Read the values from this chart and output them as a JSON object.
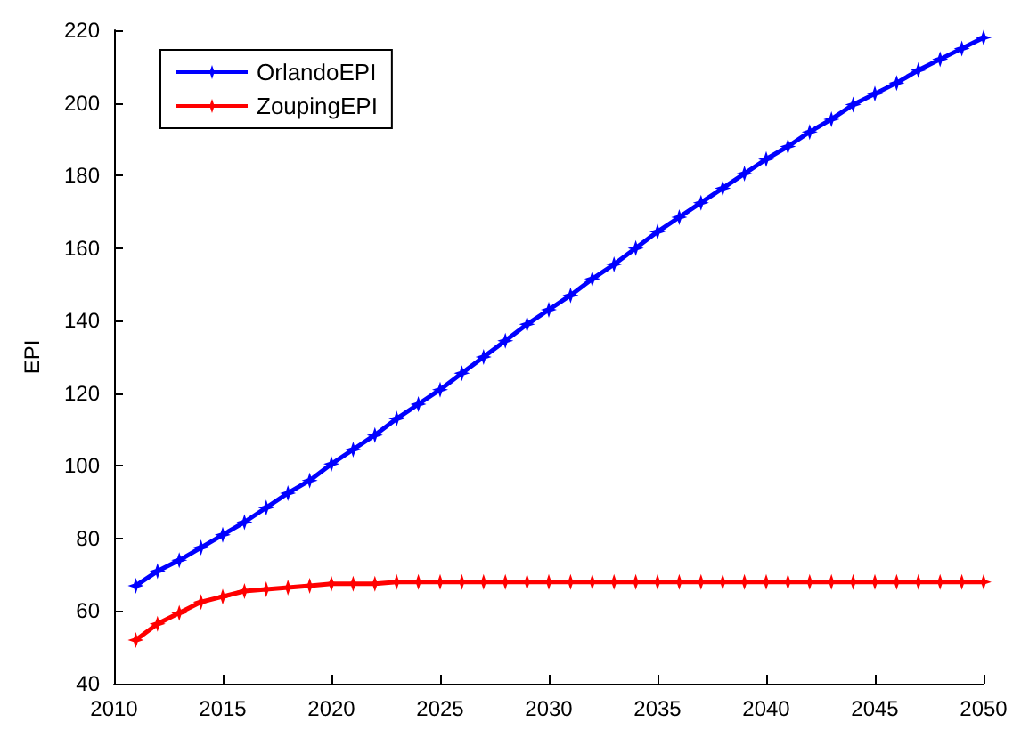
{
  "chart_data": {
    "type": "line",
    "ylabel": "EPI",
    "x": [
      2011,
      2012,
      2013,
      2014,
      2015,
      2016,
      2017,
      2018,
      2019,
      2020,
      2021,
      2022,
      2023,
      2024,
      2025,
      2026,
      2027,
      2028,
      2029,
      2030,
      2031,
      2032,
      2033,
      2034,
      2035,
      2036,
      2037,
      2038,
      2039,
      2040,
      2041,
      2042,
      2043,
      2044,
      2045,
      2046,
      2047,
      2048,
      2049,
      2050
    ],
    "series": [
      {
        "name": "OrlandoEPI",
        "color": "#0000ff",
        "values": [
          67,
          71,
          74,
          77.5,
          81,
          84.5,
          88.5,
          92.5,
          96,
          100.5,
          104.5,
          108.5,
          113,
          117,
          121,
          125.5,
          130,
          134.5,
          139,
          143,
          147,
          151.5,
          155.5,
          160,
          164.5,
          168.5,
          172.5,
          176.5,
          180.5,
          184.5,
          188,
          192,
          195.5,
          199.5,
          202.5,
          205.5,
          209,
          212,
          215,
          218
        ]
      },
      {
        "name": "ZoupingEPI",
        "color": "#ff0000",
        "values": [
          52,
          56.5,
          59.5,
          62.5,
          64,
          65.5,
          66,
          66.5,
          67,
          67.5,
          67.5,
          67.5,
          68,
          68,
          68,
          68,
          68,
          68,
          68,
          68,
          68,
          68,
          68,
          68,
          68,
          68,
          68,
          68,
          68,
          68,
          68,
          68,
          68,
          68,
          68,
          68,
          68,
          68,
          68,
          68
        ]
      }
    ],
    "xlim": [
      2010,
      2050
    ],
    "xticks": [
      2010,
      2015,
      2020,
      2025,
      2030,
      2035,
      2040,
      2045,
      2050
    ],
    "ylim": [
      40,
      220
    ],
    "yticks": [
      40,
      60,
      80,
      100,
      120,
      140,
      160,
      180,
      200,
      220
    ],
    "grid": false,
    "legend": "top left",
    "marker": "star",
    "line_style": "solid"
  }
}
